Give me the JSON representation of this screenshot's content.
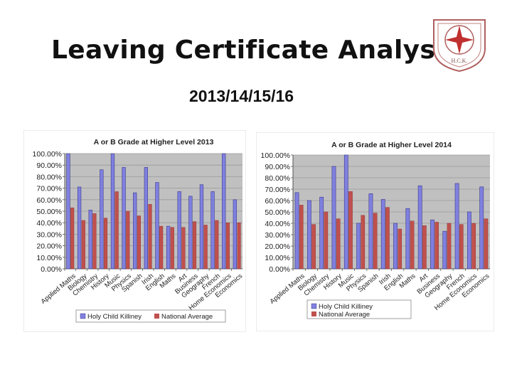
{
  "slide": {
    "title": "Leaving Certificate Analysis",
    "subtitle": "2013/14/15/16",
    "logo_text": "H.C.K."
  },
  "colors": {
    "school": "#8080e0",
    "national": "#c0504d",
    "plot_bg": "#c0c0c0"
  },
  "chart_data": [
    {
      "type": "bar",
      "title": "A or B Grade at Higher Level 2013",
      "categories": [
        "Applied Maths",
        "Biology",
        "Chemistry",
        "History",
        "Music",
        "Physics",
        "Spanish",
        "Irish",
        "English",
        "Maths",
        "Art",
        "Business",
        "Geography",
        "French",
        "Home Economics",
        "Economics"
      ],
      "series": [
        {
          "name": "Holy Child Killiney",
          "values": [
            100,
            71,
            51,
            86,
            100,
            88,
            66,
            88,
            75,
            37,
            67,
            63,
            73,
            67,
            100,
            60
          ]
        },
        {
          "name": "National Average",
          "values": [
            53,
            42,
            48,
            44,
            67,
            50,
            46,
            56,
            37,
            36,
            36,
            41,
            38,
            42,
            40,
            40
          ]
        }
      ],
      "yticks": [
        "0.00%",
        "10.00%",
        "20.00%",
        "30.00%",
        "40.00%",
        "50.00%",
        "60.00%",
        "70.00%",
        "80.00%",
        "90.00%",
        "100.00%"
      ],
      "ylim": [
        0,
        100
      ],
      "grid": true,
      "legend": "bottom"
    },
    {
      "type": "bar",
      "title": "A or B Grade at Higher Level 2014",
      "categories": [
        "Applied Maths",
        "Biology",
        "Chemistry",
        "History",
        "Music",
        "Physics",
        "Spanish",
        "Irish",
        "English",
        "Maths",
        "Art",
        "Business",
        "Geography",
        "French",
        "Home Economics",
        "Economics"
      ],
      "series": [
        {
          "name": "Holy Child Killiney",
          "values": [
            67,
            60,
            63,
            90,
            100,
            40,
            66,
            61,
            40,
            53,
            73,
            43,
            33,
            75,
            50,
            72
          ]
        },
        {
          "name": "National Average",
          "values": [
            56,
            39,
            50,
            44,
            68,
            47,
            49,
            54,
            35,
            42,
            38,
            41,
            40,
            39,
            40,
            44
          ]
        }
      ],
      "yticks": [
        "0.00%",
        "10.00%",
        "20.00%",
        "30.00%",
        "40.00%",
        "50.00%",
        "60.00%",
        "70.00%",
        "80.00%",
        "90.00%",
        "100.00%"
      ],
      "ylim": [
        0,
        100
      ],
      "grid": true,
      "legend": "bottom"
    }
  ]
}
